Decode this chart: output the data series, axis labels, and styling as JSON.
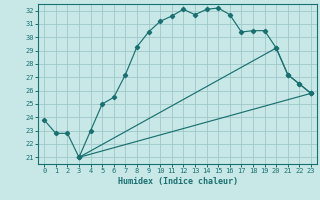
{
  "xlabel": "Humidex (Indice chaleur)",
  "bg_color": "#c8e8e8",
  "grid_color": "#a0c8c8",
  "line_color": "#1a7070",
  "xlim": [
    -0.5,
    23.5
  ],
  "ylim": [
    20.5,
    32.5
  ],
  "xticks": [
    0,
    1,
    2,
    3,
    4,
    5,
    6,
    7,
    8,
    9,
    10,
    11,
    12,
    13,
    14,
    15,
    16,
    17,
    18,
    19,
    20,
    21,
    22,
    23
  ],
  "yticks": [
    21,
    22,
    23,
    24,
    25,
    26,
    27,
    28,
    29,
    30,
    31,
    32
  ],
  "line1_x": [
    0,
    1,
    2,
    3,
    4,
    5,
    6,
    7,
    8,
    9,
    10,
    11,
    12,
    13,
    14,
    15,
    16,
    17,
    18,
    19,
    20,
    21,
    22,
    23
  ],
  "line1_y": [
    23.8,
    22.8,
    22.8,
    21.0,
    23.0,
    25.0,
    25.5,
    27.2,
    29.3,
    30.4,
    31.2,
    31.6,
    32.1,
    31.7,
    32.1,
    32.2,
    31.7,
    30.4,
    30.5,
    30.5,
    29.2,
    27.2,
    26.5,
    25.8
  ],
  "line2_x": [
    3,
    23
  ],
  "line2_y": [
    21.0,
    25.8
  ],
  "line3_x": [
    3,
    20,
    21,
    22,
    23
  ],
  "line3_y": [
    21.0,
    29.2,
    27.2,
    26.5,
    25.8
  ]
}
